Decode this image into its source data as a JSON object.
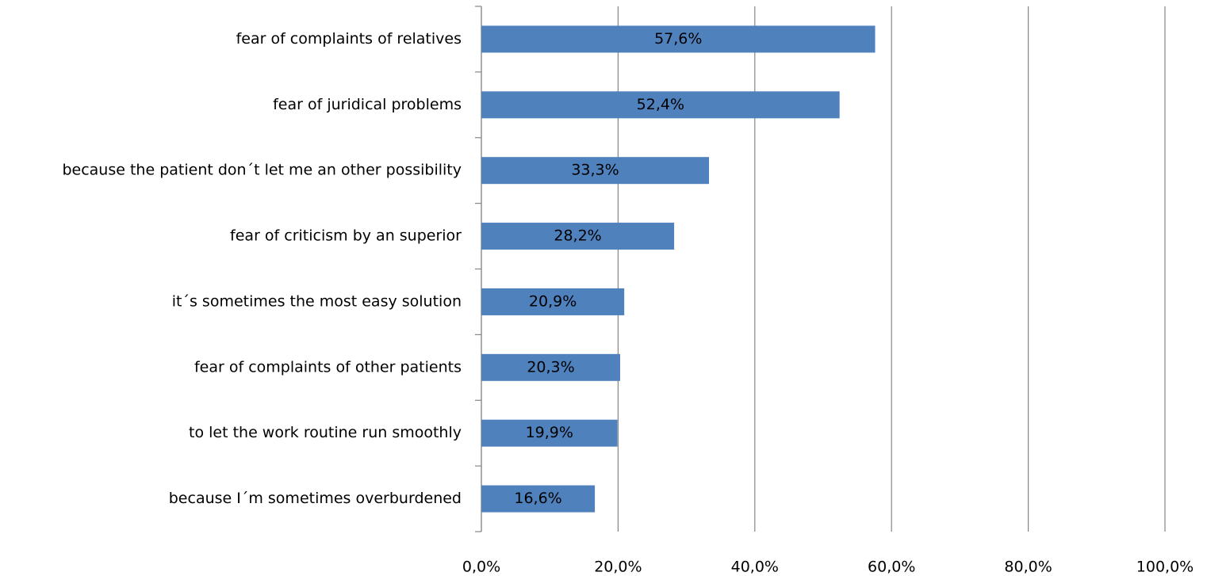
{
  "chart_data": {
    "type": "bar",
    "orientation": "horizontal",
    "categories": [
      "fear of complaints of relatives",
      "fear of juridical problems",
      "because the patient don´t let me an other possibility",
      "fear of criticism by an superior",
      "it´s sometimes the most easy solution",
      "fear of complaints of other patients",
      "to let the work routine run smoothly",
      "because I´m sometimes overburdened"
    ],
    "values": [
      57.6,
      52.4,
      33.3,
      28.2,
      20.9,
      20.3,
      19.9,
      16.6
    ],
    "value_labels": [
      "57,6%",
      "52,4%",
      "33,3%",
      "28,2%",
      "20,9%",
      "20,3%",
      "19,9%",
      "16,6%"
    ],
    "color": "#4f81bd",
    "xlim": [
      0,
      100
    ],
    "xticks": [
      {
        "value": 0,
        "label": "0,0%"
      },
      {
        "value": 20,
        "label": "20,0%"
      },
      {
        "value": 40,
        "label": "40,0%"
      },
      {
        "value": 60,
        "label": "60,0%"
      },
      {
        "value": 80,
        "label": "80,0%"
      },
      {
        "value": 100,
        "label": "100,0%"
      }
    ],
    "grid": true
  }
}
